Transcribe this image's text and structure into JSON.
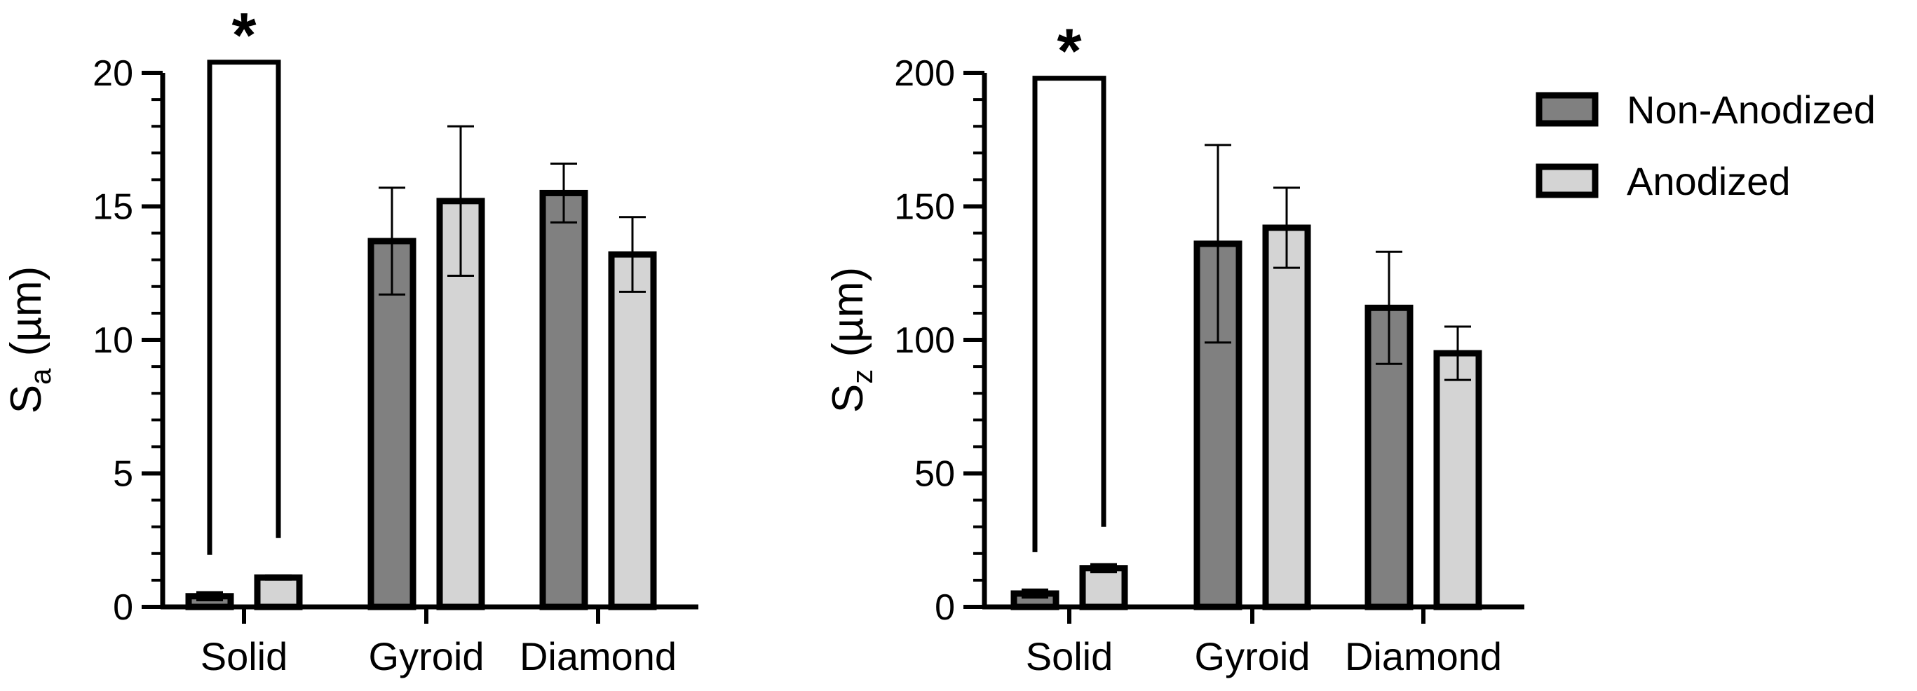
{
  "legend": {
    "items": [
      {
        "label": "Non-Anodized",
        "color": "#808080"
      },
      {
        "label": "Anodized",
        "color": "#d4d4d4"
      }
    ]
  },
  "chart_data": [
    {
      "type": "bar",
      "ylabel_main": "S",
      "ylabel_sub": "a",
      "ylabel_unit": " (µm)",
      "categories": [
        "Solid",
        "Gyroid",
        "Diamond"
      ],
      "ylim": [
        0,
        20
      ],
      "yticks": [
        0,
        5,
        10,
        15,
        20
      ],
      "minor_step": 1,
      "series": [
        {
          "name": "Non-Anodized",
          "values": [
            0.4,
            13.7,
            15.5
          ],
          "errors": [
            0.15,
            2.0,
            1.1
          ]
        },
        {
          "name": "Anodized",
          "values": [
            1.1,
            15.2,
            13.2
          ],
          "errors": [
            0.08,
            2.8,
            1.4
          ]
        }
      ],
      "significance": {
        "category": "Solid",
        "label": "*",
        "level": 20.4
      }
    },
    {
      "type": "bar",
      "ylabel_main": "S",
      "ylabel_sub": "z",
      "ylabel_unit": " (µm)",
      "categories": [
        "Solid",
        "Gyroid",
        "Diamond"
      ],
      "ylim": [
        0,
        200
      ],
      "yticks": [
        0,
        50,
        100,
        150,
        200
      ],
      "minor_step": 10,
      "series": [
        {
          "name": "Non-Anodized",
          "values": [
            5,
            136,
            112
          ],
          "errors": [
            1.5,
            37,
            21
          ]
        },
        {
          "name": "Anodized",
          "values": [
            14.5,
            142,
            95
          ],
          "errors": [
            1.5,
            15,
            10
          ]
        }
      ],
      "significance": {
        "category": "Solid",
        "label": "*",
        "level": 198
      }
    }
  ]
}
